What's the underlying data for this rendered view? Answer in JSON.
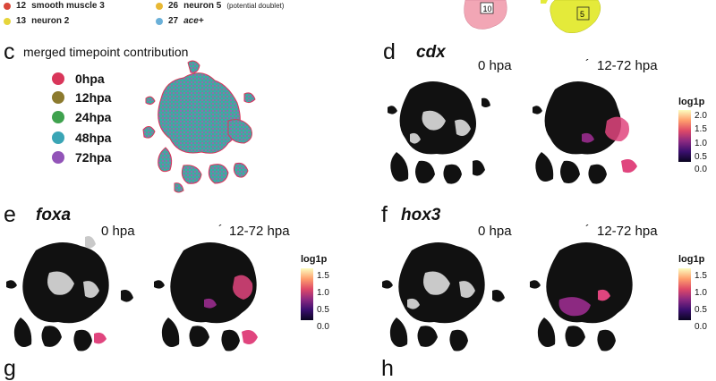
{
  "top_legend": [
    {
      "num": "12",
      "name": "smooth muscle 3",
      "note": "",
      "color": "#d9473a"
    },
    {
      "num": "13",
      "name": "neuron 2",
      "note": "",
      "color": "#e6d53b"
    },
    {
      "num": "26",
      "name": "neuron 5",
      "note": "(potential doublet)",
      "color": "#e8b834"
    },
    {
      "num": "27",
      "name": "ace+",
      "note": "",
      "color": "#6ab0d8"
    }
  ],
  "top_labels": {
    "left": "10",
    "right": "5"
  },
  "panels": {
    "c": {
      "letter": "c",
      "title": "merged timepoint contribution"
    },
    "d": {
      "letter": "d",
      "gene": "cdx",
      "left": "0 hpa",
      "right": "12-72 hpa"
    },
    "e": {
      "letter": "e",
      "gene": "foxa",
      "left": "0 hpa",
      "right": "12-72 hpa"
    },
    "f": {
      "letter": "f",
      "gene": "hox3",
      "left": "0 hpa",
      "right": "12-72 hpa"
    },
    "g": {
      "letter": "g"
    },
    "h": {
      "letter": "h"
    }
  },
  "timepoints": [
    {
      "label": "0hpa",
      "color": "#d9365a"
    },
    {
      "label": "12hpa",
      "color": "#8c7a2e"
    },
    {
      "label": "24hpa",
      "color": "#3fa24e"
    },
    {
      "label": "48hpa",
      "color": "#3aa5b5"
    },
    {
      "label": "72hpa",
      "color": "#9254b8"
    }
  ],
  "colorbar": {
    "title": "log1p",
    "d_ticks": [
      "2.0",
      "1.5",
      "1.0",
      "0.5",
      "0.0"
    ],
    "ef_ticks": [
      "1.5",
      "1.0",
      "0.5",
      "0.0"
    ]
  },
  "tick_glyph": "´",
  "colors": {
    "cluster10": "#f2a6b5",
    "cluster5": "#e4ea3a",
    "expr_hot": "#e0457e",
    "gray": "#c9c9c9"
  }
}
